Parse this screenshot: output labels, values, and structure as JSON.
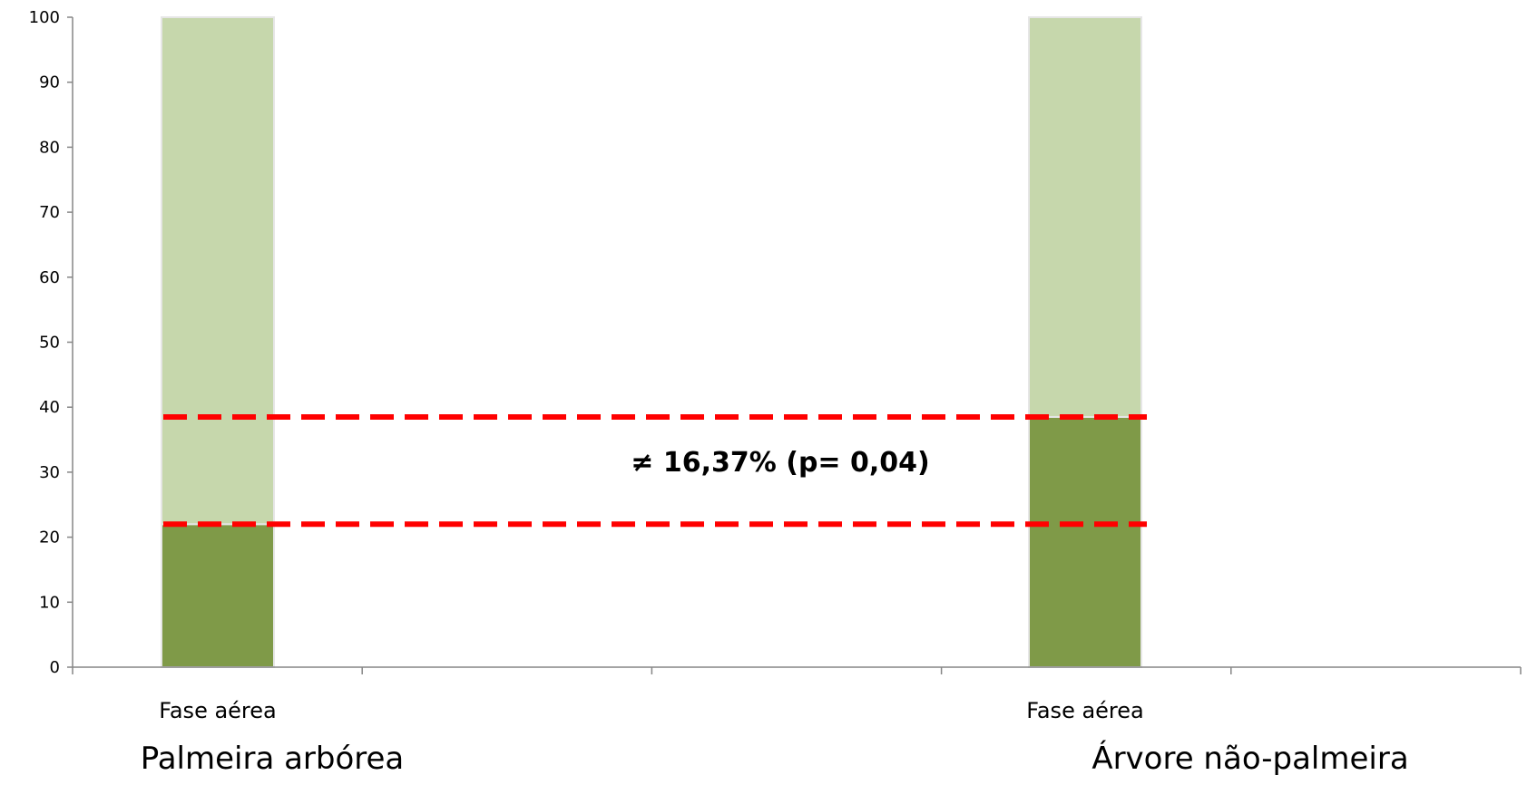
{
  "chart_data": {
    "type": "bar",
    "stacked": true,
    "ylim": [
      0,
      100
    ],
    "yticks": [
      0,
      10,
      20,
      30,
      40,
      50,
      60,
      70,
      80,
      90,
      100
    ],
    "groups": [
      "Palmeira arbórea",
      "Árvore não-palmeira"
    ],
    "categories": [
      "Fase aérea",
      "Fase aérea"
    ],
    "series": [
      {
        "values": [
          22,
          38.5
        ],
        "color": "#7f9a48"
      },
      {
        "values": [
          78,
          61.5
        ],
        "color": "#c6d7ac"
      }
    ],
    "reference_lines": [
      {
        "y": 38.5,
        "color": "#ff0000",
        "style": "dashed"
      },
      {
        "y": 22,
        "color": "#ff0000",
        "style": "dashed"
      }
    ],
    "annotation": "≠ 16,37% (p= 0,04)",
    "grid": false,
    "legend": "none"
  }
}
